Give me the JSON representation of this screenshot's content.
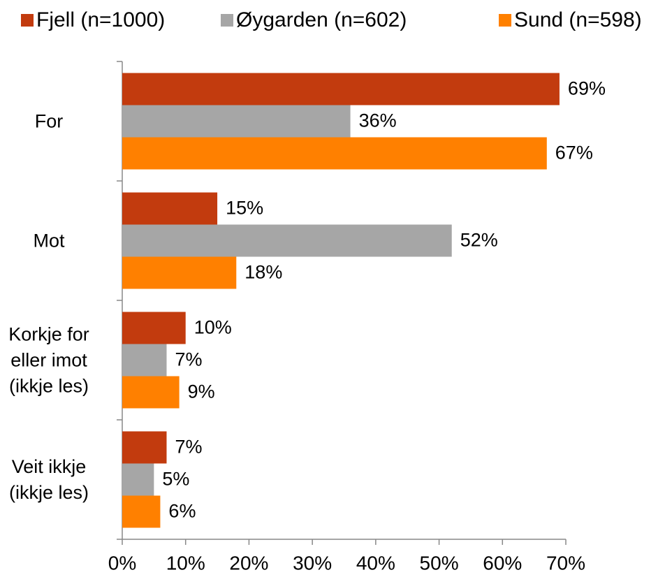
{
  "chart_data": {
    "type": "bar",
    "orientation": "horizontal",
    "categories": [
      "For",
      "Mot",
      "Korkje for\neller imot\n(ikkje les)",
      "Veit ikkje\n(ikkje les)"
    ],
    "series": [
      {
        "name": "Fjell (n=1000)",
        "color": "#C23B0E",
        "values": [
          69,
          15,
          10,
          7
        ],
        "value_labels": [
          "69%",
          "15%",
          "10%",
          "7%"
        ]
      },
      {
        "name": "Øygarden (n=602)",
        "color": "#A6A6A6",
        "values": [
          36,
          52,
          7,
          5
        ],
        "value_labels": [
          "36%",
          "52%",
          "7%",
          "5%"
        ]
      },
      {
        "name": "Sund (n=598)",
        "color": "#FF8000",
        "values": [
          67,
          18,
          9,
          6
        ],
        "value_labels": [
          "67%",
          "18%",
          "9%",
          "6%"
        ]
      }
    ],
    "xlim": [
      0,
      70
    ],
    "xticks": [
      {
        "value": 0,
        "label": "0%"
      },
      {
        "value": 10,
        "label": "10%"
      },
      {
        "value": 20,
        "label": "20%"
      },
      {
        "value": 30,
        "label": "30%"
      },
      {
        "value": 40,
        "label": "40%"
      },
      {
        "value": 50,
        "label": "50%"
      },
      {
        "value": 60,
        "label": "60%"
      },
      {
        "value": 70,
        "label": "70%"
      }
    ],
    "legend": "top",
    "grid": false
  }
}
